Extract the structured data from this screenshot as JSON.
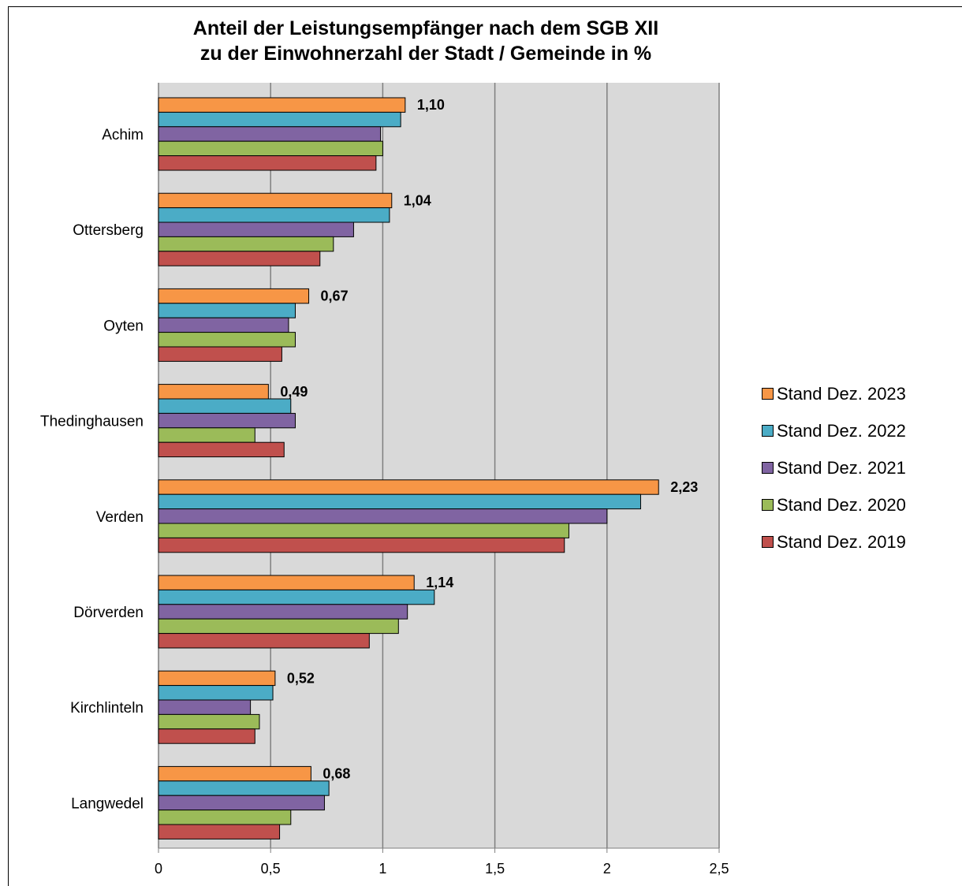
{
  "chart_data": {
    "type": "bar",
    "orientation": "horizontal",
    "title_lines": [
      "Anteil der Leistungsempfänger nach dem SGB XII",
      "zu der Einwohnerzahl der Stadt / Gemeinde in %"
    ],
    "categories": [
      "Achim",
      "Ottersberg",
      "Oyten",
      "Thedinghausen",
      "Verden",
      "Dörverden",
      "Kirchlinteln",
      "Langwedel"
    ],
    "series": [
      {
        "name": "Stand Dez. 2023",
        "color": "#F79646",
        "values": [
          1.1,
          1.04,
          0.67,
          0.49,
          2.23,
          1.14,
          0.52,
          0.68
        ]
      },
      {
        "name": "Stand Dez. 2022",
        "color": "#4BACC6",
        "values": [
          1.08,
          1.03,
          0.61,
          0.59,
          2.15,
          1.23,
          0.51,
          0.76
        ]
      },
      {
        "name": "Stand Dez. 2021",
        "color": "#8064A2",
        "values": [
          0.99,
          0.87,
          0.58,
          0.61,
          2.0,
          1.11,
          0.41,
          0.74
        ]
      },
      {
        "name": "Stand Dez. 2020",
        "color": "#9BBB59",
        "values": [
          1.0,
          0.78,
          0.61,
          0.43,
          1.83,
          1.07,
          0.45,
          0.59
        ]
      },
      {
        "name": "Stand Dez. 2019",
        "color": "#C0504D",
        "values": [
          0.97,
          0.72,
          0.55,
          0.56,
          1.81,
          0.94,
          0.43,
          0.54
        ]
      }
    ],
    "data_labels": [
      "1,10",
      "1,04",
      "0,67",
      "0,49",
      "2,23",
      "1,14",
      "0,52",
      "0,68"
    ],
    "xlim": [
      0,
      2.5
    ],
    "x_ticks": [
      0,
      0.5,
      1,
      1.5,
      2,
      2.5
    ],
    "x_tick_labels": [
      "0",
      "0,5",
      "1",
      "1,5",
      "2",
      "2,5"
    ],
    "grid": true,
    "legend_position": "right"
  }
}
